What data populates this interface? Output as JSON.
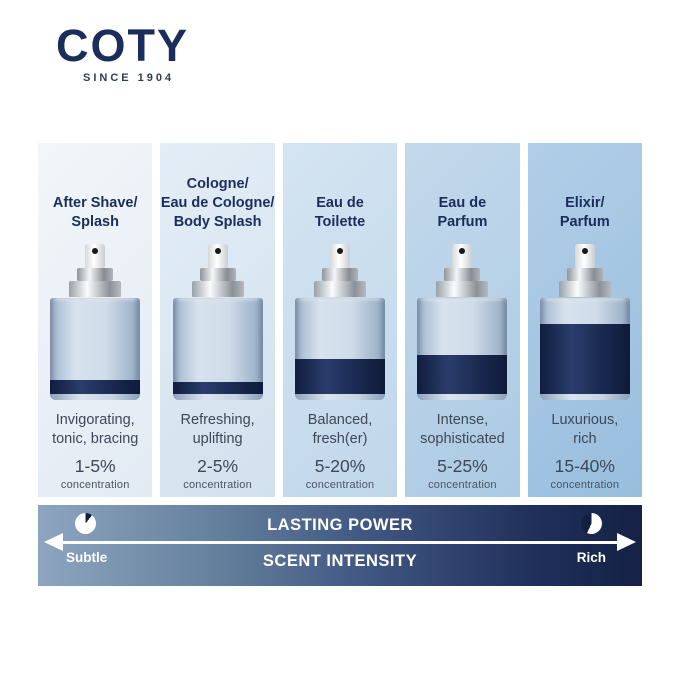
{
  "brand": {
    "name": "COTY",
    "tagline": "SINCE 1904"
  },
  "colors": {
    "brand_navy": "#1b2d5b",
    "body_text": "#3e4857",
    "liquid_dark": "#1a2950",
    "liquid_light": "#cfdce9",
    "bar_gradient_left": "#8da5c0",
    "bar_gradient_right": "#152145",
    "panel_gradients": [
      [
        "#f2f6fa",
        "#e2eaf3"
      ],
      [
        "#e3edf6",
        "#d2e1ee"
      ],
      [
        "#d4e4f2",
        "#c0d7ea"
      ],
      [
        "#c3d9ec",
        "#accae3"
      ],
      [
        "#b1cee8",
        "#98bede"
      ]
    ]
  },
  "columns": [
    {
      "title_lines": [
        "After Shave/",
        "Splash"
      ],
      "desc_lines": [
        "Invigorating,",
        "tonic, bracing"
      ],
      "range": "1-5%",
      "range_label": "concentration",
      "fill_percent": 15
    },
    {
      "title_lines": [
        "Cologne/",
        "Eau de Cologne/",
        "Body Splash"
      ],
      "desc_lines": [
        "Refreshing,",
        "uplifting"
      ],
      "range": "2-5%",
      "range_label": "concentration",
      "fill_percent": 13
    },
    {
      "title_lines": [
        "Eau de",
        "Toilette"
      ],
      "desc_lines": [
        "Balanced,",
        "fresh(er)"
      ],
      "range": "5-20%",
      "range_label": "concentration",
      "fill_percent": 36
    },
    {
      "title_lines": [
        "Eau de",
        "Parfum"
      ],
      "desc_lines": [
        "Intense,",
        "sophisticated"
      ],
      "range": "5-25%",
      "range_label": "concentration",
      "fill_percent": 41
    },
    {
      "title_lines": [
        "Elixir/",
        "Parfum"
      ],
      "desc_lines": [
        "Luxurious,",
        "rich"
      ],
      "range": "15-40%",
      "range_label": "concentration",
      "fill_percent": 73
    }
  ],
  "spectrum_bar": {
    "top_label": "LASTING POWER",
    "bottom_label": "SCENT INTENSITY",
    "left_label": "Subtle",
    "right_label": "Rich",
    "left_icon": "clock-short-elapsed-icon",
    "right_icon": "clock-long-elapsed-icon"
  }
}
